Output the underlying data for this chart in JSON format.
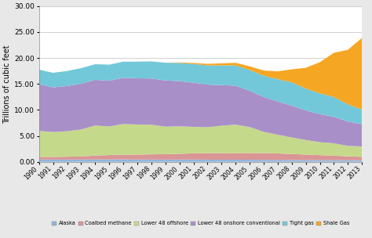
{
  "years": [
    1990,
    1991,
    1992,
    1993,
    1994,
    1995,
    1996,
    1997,
    1998,
    1999,
    2000,
    2001,
    2002,
    2003,
    2004,
    2005,
    2006,
    2007,
    2008,
    2009,
    2010,
    2011,
    2012,
    2013
  ],
  "series": {
    "Alaska": [
      0.45,
      0.44,
      0.44,
      0.44,
      0.45,
      0.46,
      0.48,
      0.44,
      0.44,
      0.43,
      0.44,
      0.44,
      0.42,
      0.41,
      0.41,
      0.4,
      0.38,
      0.37,
      0.36,
      0.35,
      0.34,
      0.33,
      0.32,
      0.31
    ],
    "Coalbed methane": [
      0.5,
      0.5,
      0.55,
      0.6,
      0.75,
      0.85,
      0.9,
      0.95,
      1.0,
      1.05,
      1.1,
      1.2,
      1.25,
      1.25,
      1.25,
      1.3,
      1.3,
      1.25,
      1.15,
      1.05,
      0.95,
      0.85,
      0.75,
      0.65
    ],
    "Lower 48 offshore": [
      5.0,
      4.8,
      4.9,
      5.2,
      5.8,
      5.5,
      5.9,
      5.8,
      5.7,
      5.3,
      5.3,
      5.1,
      5.0,
      5.3,
      5.5,
      5.0,
      4.1,
      3.6,
      3.2,
      2.8,
      2.5,
      2.4,
      2.0,
      2.0
    ],
    "Lower 48 onshore conventional": [
      9.0,
      8.6,
      8.7,
      8.8,
      8.8,
      8.8,
      8.9,
      8.9,
      8.9,
      8.9,
      8.7,
      8.5,
      8.2,
      7.8,
      7.5,
      7.0,
      6.7,
      6.4,
      6.1,
      5.7,
      5.4,
      5.1,
      4.7,
      4.3
    ],
    "Tight gas": [
      2.8,
      2.8,
      2.9,
      3.0,
      3.0,
      3.1,
      3.1,
      3.2,
      3.3,
      3.4,
      3.5,
      3.6,
      3.7,
      3.8,
      3.9,
      4.0,
      4.1,
      4.3,
      4.5,
      4.2,
      4.0,
      3.8,
      3.3,
      2.8
    ],
    "Shale Gas": [
      0.0,
      0.0,
      0.0,
      0.0,
      0.0,
      0.0,
      0.0,
      0.0,
      0.0,
      0.0,
      0.1,
      0.2,
      0.3,
      0.4,
      0.5,
      0.7,
      1.0,
      1.5,
      2.5,
      4.0,
      6.0,
      8.5,
      10.5,
      13.8
    ]
  },
  "colors": {
    "Alaska": "#92b4da",
    "Coalbed methane": "#da9595",
    "Lower 48 offshore": "#c5d98a",
    "Lower 48 onshore conventional": "#a98fc8",
    "Tight gas": "#72c8d8",
    "Shale Gas": "#f5a623"
  },
  "ylabel": "Trillions of cubic feet",
  "ylim": [
    0.0,
    30.0
  ],
  "yticks": [
    0.0,
    5.0,
    10.0,
    15.0,
    20.0,
    25.0,
    30.0
  ],
  "background_color": "#e8e8e8",
  "plot_background": "#ffffff",
  "grid_color": "#c8c8c8"
}
